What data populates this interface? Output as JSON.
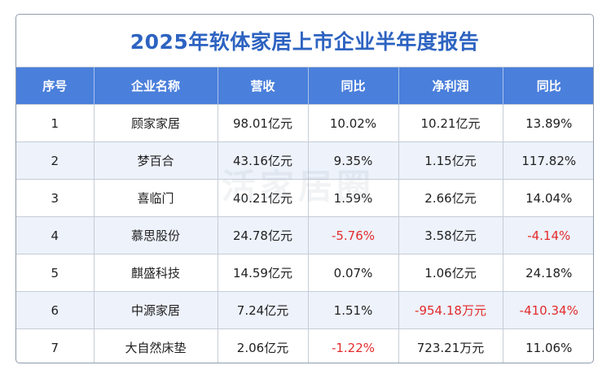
{
  "title": "2025年软体家居上市企业半年度报告",
  "headers": [
    "序号",
    "企业名称",
    "营收",
    "同比",
    "净利润",
    "同比"
  ],
  "rows": [
    {
      "no": "1",
      "name": "顾家家居",
      "revenue": "98.01亿元",
      "rev_yoy": "10.02%",
      "profit": "10.21亿元",
      "profit_yoy": "13.89%",
      "rev_yoy_neg": false,
      "profit_neg": false,
      "profit_yoy_neg": false
    },
    {
      "no": "2",
      "name": "梦百合",
      "revenue": "43.16亿元",
      "rev_yoy": "9.35%",
      "profit": "1.15亿元",
      "profit_yoy": "117.82%",
      "rev_yoy_neg": false,
      "profit_neg": false,
      "profit_yoy_neg": false
    },
    {
      "no": "3",
      "name": "喜临门",
      "revenue": "40.21亿元",
      "rev_yoy": "1.59%",
      "profit": "2.66亿元",
      "profit_yoy": "14.04%",
      "rev_yoy_neg": false,
      "profit_neg": false,
      "profit_yoy_neg": false
    },
    {
      "no": "4",
      "name": "慕思股份",
      "revenue": "24.78亿元",
      "rev_yoy": "-5.76%",
      "profit": "3.58亿元",
      "profit_yoy": "-4.14%",
      "rev_yoy_neg": true,
      "profit_neg": false,
      "profit_yoy_neg": true
    },
    {
      "no": "5",
      "name": "麒盛科技",
      "revenue": "14.59亿元",
      "rev_yoy": "0.07%",
      "profit": "1.06亿元",
      "profit_yoy": "24.18%",
      "rev_yoy_neg": false,
      "profit_neg": false,
      "profit_yoy_neg": false
    },
    {
      "no": "6",
      "name": "中源家居",
      "revenue": "7.24亿元",
      "rev_yoy": "1.51%",
      "profit": "-954.18万元",
      "profit_yoy": "-410.34%",
      "rev_yoy_neg": false,
      "profit_neg": true,
      "profit_yoy_neg": true
    },
    {
      "no": "7",
      "name": "大自然床垫",
      "revenue": "2.06亿元",
      "rev_yoy": "-1.22%",
      "profit": "723.21万元",
      "profit_yoy": "11.06%",
      "rev_yoy_neg": true,
      "profit_neg": false,
      "profit_yoy_neg": false
    }
  ],
  "watermark": "活家居圈",
  "colors": {
    "title": "#2d63c1",
    "header_bg": "#4a7fdb",
    "negative": "#e32b2b",
    "alt_row": "#edf2fb"
  }
}
